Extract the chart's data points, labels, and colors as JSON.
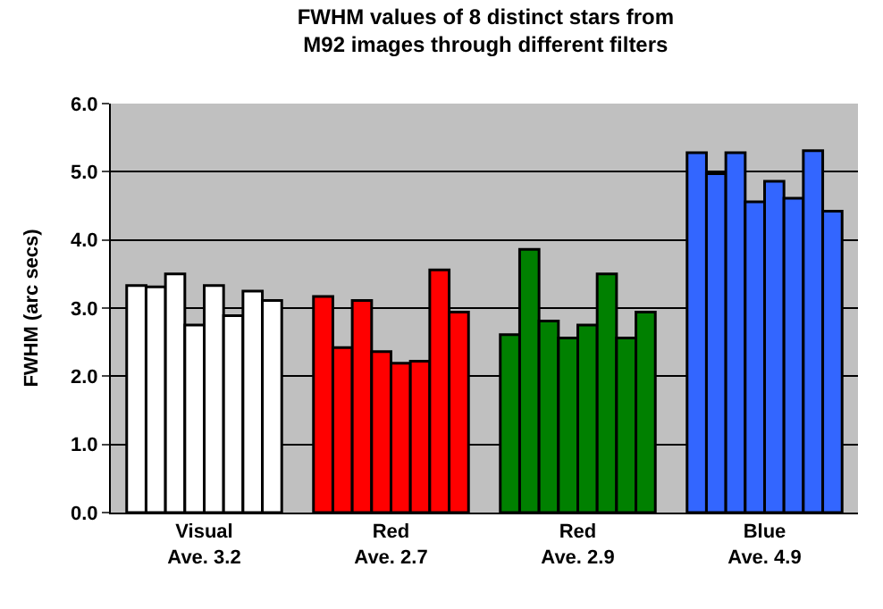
{
  "chart_data": {
    "type": "bar",
    "title": "FWHM values of 8 distinct stars from\nM92 images through different filters",
    "ylabel": "FWHM (arc secs)",
    "categories": [
      "Visual\nAve. 3.2",
      "Red\nAve. 2.7",
      "Red\nAve. 2.9",
      "Blue\nAve. 4.9"
    ],
    "series": [
      {
        "colors": [
          "#ffffff",
          "#ff0000",
          "#008000",
          "#3366ff"
        ],
        "values": [
          3.33,
          3.17,
          2.61,
          5.28
        ]
      },
      {
        "colors": [
          "#ffffff",
          "#ff0000",
          "#008000",
          "#3366ff"
        ],
        "values": [
          3.31,
          2.42,
          3.86,
          4.97
        ]
      },
      {
        "colors": [
          "#ffffff",
          "#ff0000",
          "#008000",
          "#3366ff"
        ],
        "values": [
          3.5,
          3.11,
          2.81,
          5.28
        ]
      },
      {
        "colors": [
          "#ffffff",
          "#ff0000",
          "#008000",
          "#3366ff"
        ],
        "values": [
          2.75,
          2.36,
          2.56,
          4.56
        ]
      },
      {
        "colors": [
          "#ffffff",
          "#ff0000",
          "#008000",
          "#3366ff"
        ],
        "values": [
          3.33,
          2.19,
          2.75,
          4.86
        ]
      },
      {
        "colors": [
          "#ffffff",
          "#ff0000",
          "#008000",
          "#3366ff"
        ],
        "values": [
          2.89,
          2.22,
          3.5,
          4.61
        ]
      },
      {
        "colors": [
          "#ffffff",
          "#ff0000",
          "#008000",
          "#3366ff"
        ],
        "values": [
          3.25,
          3.56,
          2.56,
          5.31
        ]
      },
      {
        "colors": [
          "#ffffff",
          "#ff0000",
          "#008000",
          "#3366ff"
        ],
        "values": [
          3.11,
          2.94,
          2.94,
          4.42
        ]
      }
    ],
    "ylim": [
      0,
      6
    ],
    "yticks": [
      {
        "value": 0,
        "label": "0.0"
      },
      {
        "value": 1,
        "label": "1.0"
      },
      {
        "value": 2,
        "label": "2.0"
      },
      {
        "value": 3,
        "label": "3.0"
      },
      {
        "value": 4,
        "label": "4.0"
      },
      {
        "value": 5,
        "label": "5.0"
      },
      {
        "value": 6,
        "label": "6.0"
      }
    ],
    "grid": "y"
  }
}
